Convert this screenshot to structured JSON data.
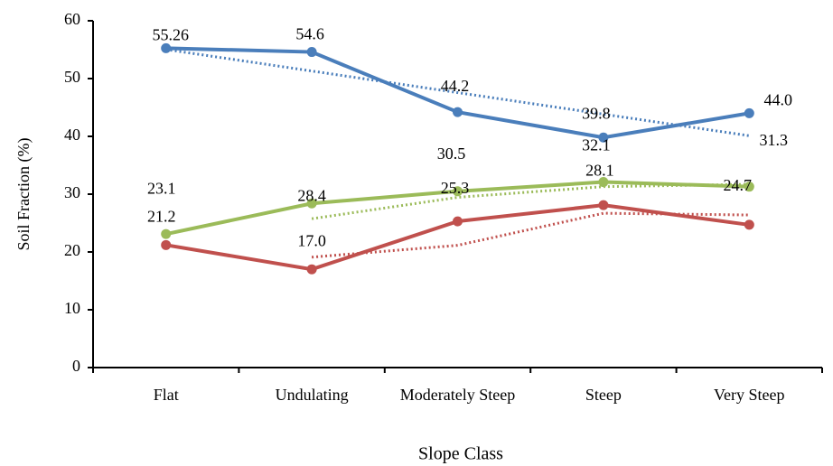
{
  "chart_data": {
    "type": "line",
    "categories": [
      "Flat",
      "Undulating",
      "Moderately Steep",
      "Steep",
      "Very Steep"
    ],
    "series": [
      {
        "color": "#4a7ebb",
        "values": [
          55.26,
          54.6,
          44.2,
          39.8,
          44.0
        ],
        "value_labels": [
          "55.26",
          "54.6",
          "44.2",
          "39.8",
          "44.0"
        ],
        "trendline": {
          "type": "linear"
        }
      },
      {
        "color": "#9bbb59",
        "values": [
          23.1,
          28.4,
          30.5,
          32.1,
          31.3
        ],
        "value_labels": [
          "23.1",
          "28.4",
          "30.5",
          "32.1",
          "31.3"
        ],
        "trendline": {
          "type": "moving_average",
          "period": 2
        }
      },
      {
        "color": "#c0504d",
        "values": [
          21.2,
          17.0,
          25.3,
          28.1,
          24.7
        ],
        "value_labels": [
          "21.2",
          "17.0",
          "25.3",
          "28.1",
          "24.7"
        ],
        "trendline": {
          "type": "moving_average",
          "period": 2
        }
      }
    ],
    "ylim": [
      0,
      60
    ],
    "yticks": [
      0,
      10,
      20,
      30,
      40,
      50,
      60
    ],
    "y_label": "Soil Fraction (%)",
    "x_label": "Slope Class"
  }
}
